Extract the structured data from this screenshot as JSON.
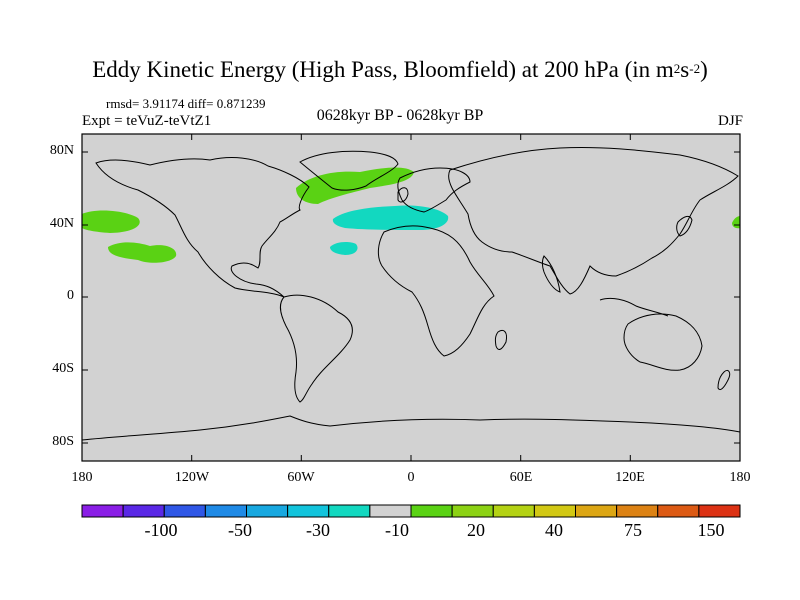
{
  "title": "Eddy Kinetic Energy (High Pass, Bloomfield) at 200 hPa (in m",
  "title_unit_sup1": "2",
  "title_unit_s": "s",
  "title_unit_sup2": "-2",
  "title_close": ")",
  "stats": "rmsd= 3.91174 diff= 0.871239",
  "experiment": "Expt = teVuZ-teVtZ1",
  "subtitle": "0628kyr BP - 0628kyr BP",
  "season": "DJF",
  "y_ticks": [
    "80N",
    "40N",
    "0",
    "40S",
    "80S"
  ],
  "x_ticks": [
    "180",
    "120W",
    "60W",
    "0",
    "60E",
    "120E",
    "180"
  ],
  "colorbar": {
    "colors": [
      "#8a1ee6",
      "#5a28e6",
      "#2f57e6",
      "#1f8ae6",
      "#18a8e0",
      "#12c4dc",
      "#12d8c0",
      "#d2d2d2",
      "#5ad214",
      "#8cd214",
      "#b4d214",
      "#d2c814",
      "#dca614",
      "#dc8214",
      "#dc5a14",
      "#dc3214"
    ],
    "labels": [
      "-100",
      "-50",
      "-30",
      "-10",
      "20",
      "40",
      "75",
      "150"
    ]
  },
  "map": {
    "land_fill": "#d2d2d2",
    "coast_color": "#000000",
    "anomalies": [
      {
        "region": "North Pacific (west of California)",
        "color": "#5ad214"
      },
      {
        "region": "North Pacific (south)",
        "color": "#5ad214"
      },
      {
        "region": "North Atlantic / Greenland",
        "color": "#5ad214"
      },
      {
        "region": "North Atlantic / Mediterranean",
        "color": "#12d8c0"
      },
      {
        "region": "Subtropical Atlantic",
        "color": "#12d8c0"
      },
      {
        "region": "Western Pacific (dateline)",
        "color": "#5ad214"
      }
    ]
  }
}
